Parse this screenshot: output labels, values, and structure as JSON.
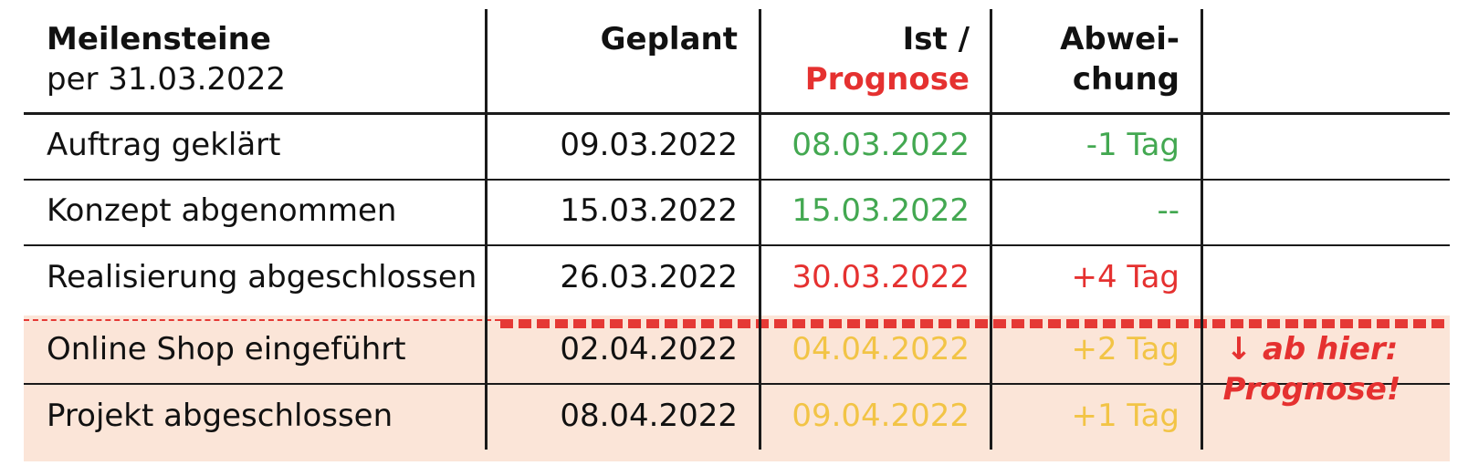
{
  "header": {
    "milestones_label": "Meilensteine",
    "as_of": "per 31.03.2022",
    "planned": "Geplant",
    "actual_line1": "Ist /",
    "actual_line2": "Prognose",
    "deviation_line1": "Abwei-",
    "deviation_line2": "chung"
  },
  "rows": [
    {
      "milestone": "Auftrag geklärt",
      "planned": "09.03.2022",
      "actual": "08.03.2022",
      "deviation": "-1 Tag",
      "status": "green"
    },
    {
      "milestone": "Konzept abgenommen",
      "planned": "15.03.2022",
      "actual": "15.03.2022",
      "deviation": "--",
      "status": "green"
    },
    {
      "milestone": "Realisierung abgeschlossen",
      "planned": "26.03.2022",
      "actual": "30.03.2022",
      "deviation": "+4 Tag",
      "status": "red"
    },
    {
      "milestone": "Online Shop eingeführt",
      "planned": "02.04.2022",
      "actual": "04.04.2022",
      "deviation": "+2 Tag",
      "status": "yellow"
    },
    {
      "milestone": "Projekt abgeschlossen",
      "planned": "08.04.2022",
      "actual": "09.04.2022",
      "deviation": "+1 Tag",
      "status": "yellow"
    }
  ],
  "forecast_note": {
    "line1": "↓ ab hier:",
    "line2": "Prognose!"
  },
  "colors": {
    "green": "#43a851",
    "red": "#e53130",
    "yellow": "#f2c446",
    "forecast_background": "#fbe5d8"
  }
}
